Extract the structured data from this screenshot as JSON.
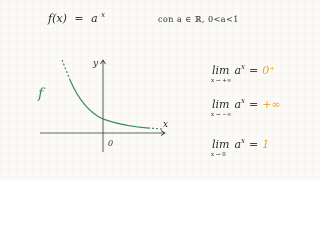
{
  "header": {
    "function": "f(x)",
    "equals": "=",
    "base": "a",
    "exponent": "x",
    "condition": "con a ∈ ℝ, 0<a<1"
  },
  "graph": {
    "curve_label": "f",
    "y_label": "y",
    "x_label": "x",
    "origin_label": "0"
  },
  "limits": [
    {
      "operator": "lim",
      "approach": "x → +∞",
      "base": "a",
      "exponent": "x",
      "equals": "=",
      "result": "0⁺"
    },
    {
      "operator": "lim",
      "approach": "x → −∞",
      "base": "a",
      "exponent": "x",
      "equals": "=",
      "result": "+∞"
    },
    {
      "operator": "lim",
      "approach": "x → 0",
      "base": "a",
      "exponent": "x",
      "equals": "=",
      "result": "1"
    }
  ]
}
